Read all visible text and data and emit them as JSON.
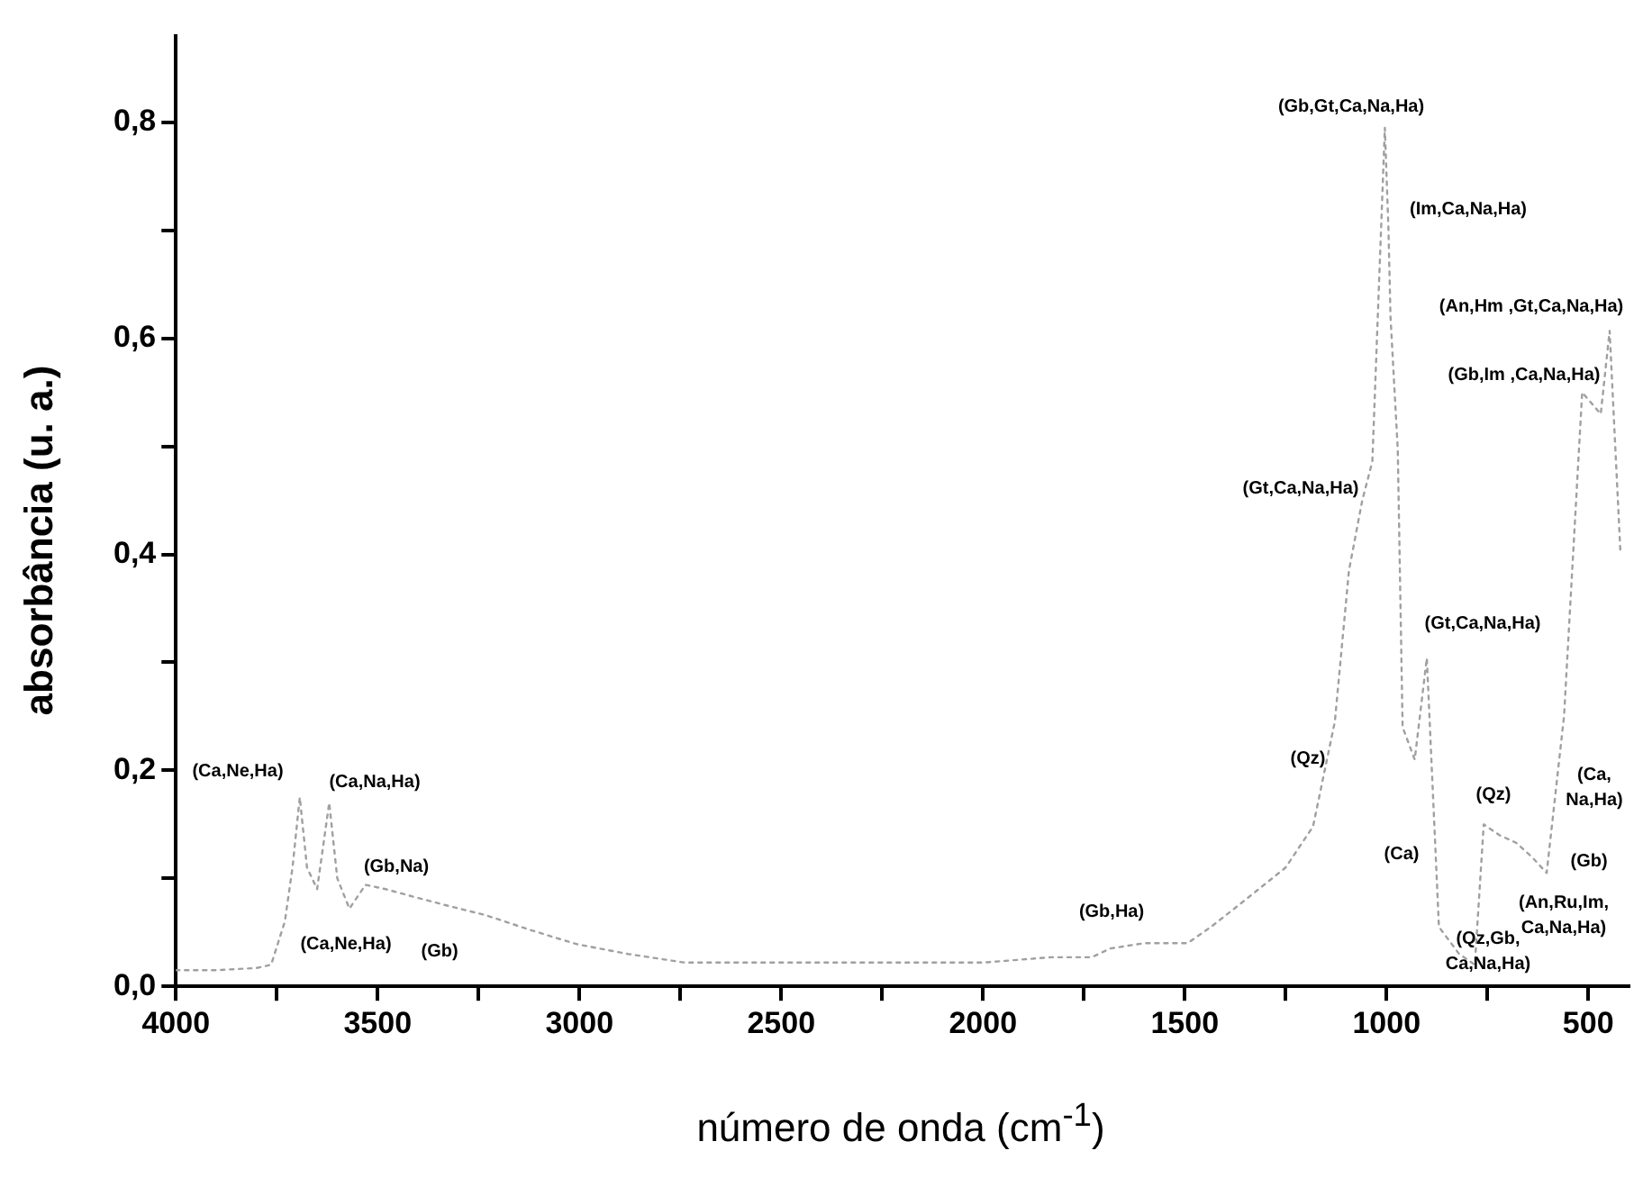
{
  "chart_data": {
    "type": "line",
    "xlabel": "número de onda (cm$^{-1}$)",
    "ylabel": "absorbância (u. a.)",
    "xlim": [
      4000,
      400
    ],
    "ylim": [
      0,
      0.88
    ],
    "xticks": [
      4000,
      {
        "value": 3750,
        "label": null
      },
      3500,
      {
        "value": 3250,
        "label": null
      },
      3000,
      {
        "value": 2750,
        "label": null
      },
      2500,
      {
        "value": 2250,
        "label": null
      },
      2000,
      {
        "value": 1750,
        "label": null
      },
      1500,
      {
        "value": 1250,
        "label": null
      },
      1000,
      {
        "value": 750,
        "label": null
      },
      500
    ],
    "yticks": [
      {
        "value": 0,
        "label": "0,0"
      },
      {
        "value": 0.1,
        "label": null
      },
      {
        "value": 0.2,
        "label": "0,2"
      },
      {
        "value": 0.3,
        "label": null
      },
      {
        "value": 0.4,
        "label": "0,4"
      },
      {
        "value": 0.5,
        "label": null
      },
      {
        "value": 0.6,
        "label": "0,6"
      },
      {
        "value": 0.7,
        "label": null
      },
      {
        "value": 0.8,
        "label": "0,8"
      }
    ],
    "grid": false,
    "legend": false,
    "marker": "none",
    "line_style": "dotted",
    "series": [
      {
        "color": "#a0a0a0",
        "x": [
          4000,
          3900,
          3800,
          3764,
          3730,
          3711,
          3693,
          3675,
          3650,
          3620,
          3600,
          3570,
          3530,
          3480,
          3411,
          3330,
          3233,
          3120,
          3006,
          2880,
          2739,
          2575,
          2400,
          2200,
          2000,
          1830,
          1730,
          1685,
          1600,
          1493,
          1435,
          1350,
          1250,
          1182,
          1128,
          1093,
          1060,
          1035,
          1004,
          995,
          990,
          972,
          960,
          930,
          900,
          870,
          820,
          781,
          759,
          720,
          679,
          640,
          603,
          560,
          515,
          469,
          447,
          420
        ],
        "values": [
          0.015,
          0.015,
          0.017,
          0.02,
          0.06,
          0.11,
          0.175,
          0.11,
          0.09,
          0.17,
          0.1,
          0.072,
          0.094,
          0.09,
          0.083,
          0.075,
          0.066,
          0.052,
          0.039,
          0.03,
          0.022,
          0.022,
          0.022,
          0.022,
          0.022,
          0.027,
          0.027,
          0.035,
          0.04,
          0.04,
          0.055,
          0.08,
          0.11,
          0.148,
          0.245,
          0.385,
          0.45,
          0.486,
          0.795,
          0.7,
          0.62,
          0.497,
          0.24,
          0.21,
          0.304,
          0.055,
          0.03,
          0.02,
          0.15,
          0.14,
          0.133,
          0.12,
          0.105,
          0.25,
          0.55,
          0.53,
          0.607,
          0.4
        ]
      }
    ],
    "annotations": [
      "(Gb,Gt,Ca,Na,Ha)",
      "(Im,Ca,Na,Ha)",
      "(An,Hm ,Gt,Ca,Na,Ha)",
      "(Gb,Im ,Ca,Na,Ha)",
      "(Gt,Ca,Na,Ha)",
      "(Gt,Ca,Na,Ha)",
      "(Qz)",
      "(Ca)",
      "(Qz)",
      "(Ca,\nNa,Ha)",
      "(Gb)",
      "(An,Ru,Im,\nCa,Na,Ha)",
      "(Qz,Gb,\nCa,Na,Ha)",
      "(Gb,Ha)",
      "(Ca,Ne,Ha)",
      "(Ca,Na,Ha)",
      "(Gb,Na)",
      "(Ca,Ne,Ha)",
      "(Gb)"
    ]
  }
}
